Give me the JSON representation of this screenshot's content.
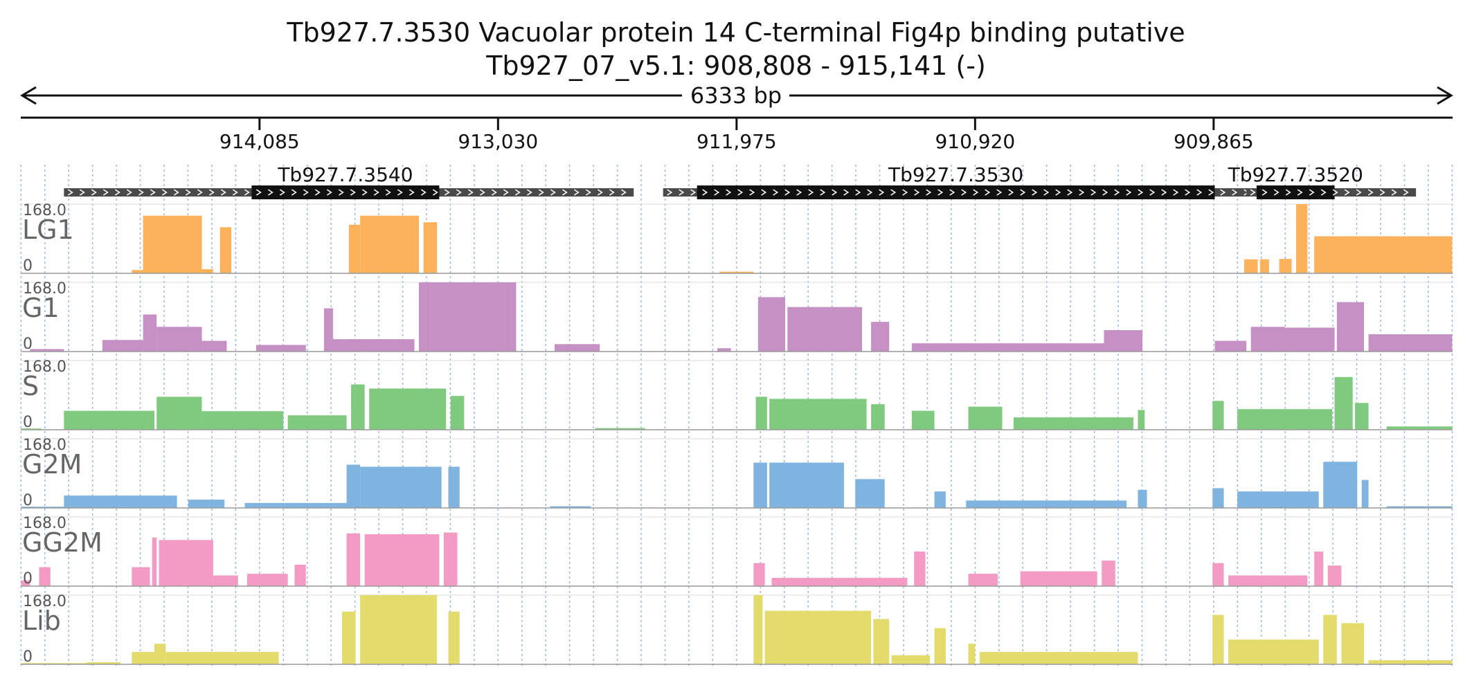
{
  "title": "Tb927.7.3530  Vacuolar protein 14 C-terminal Fig4p binding  putative",
  "subtitle": "Tb927_07_v5.1: 908,808 - 915,141 (-)",
  "chart_data": {
    "type": "area",
    "region": {
      "chrom": "Tb927_07_v5.1",
      "start": 908808,
      "end": 915141,
      "strand": "-"
    },
    "span_label": "6333 bp",
    "x_ticks": [
      "914,085",
      "913,030",
      "911,975",
      "910,920",
      "909,865"
    ],
    "x_tick_values": [
      914085,
      913030,
      911975,
      910920,
      909865
    ],
    "grid": true,
    "genes": [
      {
        "name": "Tb927.7.3540",
        "start": 912430,
        "end": 914950,
        "cds_start": 913290,
        "cds_end": 914120
      },
      {
        "name": "Tb927.7.3530",
        "start": 909600,
        "end": 912300,
        "cds_start": 909860,
        "cds_end": 912150
      },
      {
        "name": "Tb927.7.3520",
        "start": 908970,
        "end": 909720,
        "cds_start": 909330,
        "cds_end": 909675
      }
    ],
    "ylim": [
      0,
      168
    ],
    "y_max_label": "168.0",
    "y_min_label": "0",
    "tracks": [
      {
        "name": "LG1",
        "color": "#fbb25b",
        "exons": [
          [
            914650,
            914600,
            8
          ],
          [
            914600,
            914340,
            140
          ],
          [
            914340,
            914290,
            10
          ],
          [
            914260,
            914210,
            112
          ],
          [
            913690,
            913640,
            118
          ],
          [
            913640,
            913380,
            140
          ],
          [
            913360,
            913300,
            124
          ],
          [
            912050,
            911900,
            4
          ],
          [
            909730,
            909670,
            34
          ],
          [
            909660,
            909620,
            34
          ],
          [
            909575,
            909520,
            35
          ],
          [
            909500,
            909450,
            168
          ],
          [
            909420,
            908810,
            90
          ]
        ]
      },
      {
        "name": "G1",
        "color": "#c590c3",
        "exons": [
          [
            915100,
            914950,
            6
          ],
          [
            914780,
            914600,
            28
          ],
          [
            914600,
            914540,
            90
          ],
          [
            914540,
            914340,
            60
          ],
          [
            914340,
            914230,
            26
          ],
          [
            914100,
            913880,
            16
          ],
          [
            913800,
            913760,
            105
          ],
          [
            913760,
            913400,
            30
          ],
          [
            913380,
            913330,
            168
          ],
          [
            913330,
            913000,
            168
          ],
          [
            913000,
            912950,
            168
          ],
          [
            912780,
            912580,
            18
          ],
          [
            912060,
            912000,
            8
          ],
          [
            911880,
            911760,
            132
          ],
          [
            911750,
            911420,
            108
          ],
          [
            911380,
            911300,
            72
          ],
          [
            911200,
            910250,
            20
          ],
          [
            910350,
            910180,
            52
          ],
          [
            909860,
            909720,
            26
          ],
          [
            909700,
            909550,
            60
          ],
          [
            909560,
            909330,
            58
          ],
          [
            909320,
            909200,
            120
          ],
          [
            909180,
            908810,
            42
          ]
        ]
      },
      {
        "name": "S",
        "color": "#80ca7f",
        "exons": [
          [
            915140,
            915050,
            3
          ],
          [
            914950,
            914550,
            46
          ],
          [
            914540,
            914340,
            80
          ],
          [
            914340,
            913980,
            45
          ],
          [
            913960,
            913700,
            35
          ],
          [
            913680,
            913620,
            110
          ],
          [
            913600,
            913260,
            100
          ],
          [
            913240,
            913180,
            82
          ],
          [
            912600,
            912380,
            4
          ],
          [
            911890,
            911840,
            80
          ],
          [
            911830,
            911400,
            75
          ],
          [
            911380,
            911320,
            62
          ],
          [
            911200,
            911100,
            46
          ],
          [
            910950,
            910800,
            56
          ],
          [
            910750,
            910220,
            30
          ],
          [
            910200,
            910170,
            48
          ],
          [
            909870,
            909820,
            70
          ],
          [
            909760,
            909340,
            50
          ],
          [
            909330,
            909250,
            128
          ],
          [
            909240,
            909180,
            65
          ],
          [
            909100,
            908810,
            8
          ]
        ]
      },
      {
        "name": "G2M",
        "color": "#7fb3e0",
        "exons": [
          [
            915140,
            914950,
            3
          ],
          [
            914950,
            914450,
            30
          ],
          [
            914400,
            914240,
            20
          ],
          [
            914150,
            913700,
            12
          ],
          [
            913700,
            913640,
            105
          ],
          [
            913640,
            913280,
            100
          ],
          [
            913250,
            913200,
            100
          ],
          [
            912800,
            912620,
            4
          ],
          [
            911900,
            911840,
            110
          ],
          [
            911830,
            911500,
            110
          ],
          [
            911450,
            911320,
            70
          ],
          [
            911100,
            911050,
            40
          ],
          [
            910960,
            910250,
            18
          ],
          [
            910200,
            910160,
            44
          ],
          [
            909870,
            909820,
            48
          ],
          [
            909760,
            909400,
            40
          ],
          [
            909380,
            909230,
            112
          ],
          [
            909210,
            909180,
            68
          ],
          [
            909100,
            908810,
            4
          ]
        ]
      },
      {
        "name": "GG2M",
        "color": "#f39bc4",
        "exons": [
          [
            915140,
            915100,
            14
          ],
          [
            915060,
            915010,
            46
          ],
          [
            914650,
            914570,
            46
          ],
          [
            914560,
            914540,
            118
          ],
          [
            914530,
            914290,
            112
          ],
          [
            914290,
            914180,
            26
          ],
          [
            914140,
            913960,
            30
          ],
          [
            913930,
            913880,
            52
          ],
          [
            913700,
            913640,
            128
          ],
          [
            913620,
            913290,
            126
          ],
          [
            913270,
            913210,
            130
          ],
          [
            911900,
            911850,
            56
          ],
          [
            911820,
            911220,
            20
          ],
          [
            911190,
            911140,
            84
          ],
          [
            910950,
            910820,
            30
          ],
          [
            910720,
            910380,
            36
          ],
          [
            910360,
            910300,
            62
          ],
          [
            909870,
            909820,
            56
          ],
          [
            909800,
            909450,
            26
          ],
          [
            909420,
            909380,
            84
          ],
          [
            909360,
            909300,
            50
          ]
        ]
      },
      {
        "name": "Lib",
        "color": "#e3db6b",
        "exons": [
          [
            915140,
            914850,
            3
          ],
          [
            914850,
            914700,
            5
          ],
          [
            914650,
            914550,
            30
          ],
          [
            914550,
            914500,
            50
          ],
          [
            914500,
            914000,
            30
          ],
          [
            913720,
            913660,
            128
          ],
          [
            913640,
            913300,
            168
          ],
          [
            913250,
            913200,
            128
          ],
          [
            911900,
            911860,
            168
          ],
          [
            911850,
            911380,
            130
          ],
          [
            911370,
            911300,
            110
          ],
          [
            911290,
            911120,
            22
          ],
          [
            911100,
            911050,
            88
          ],
          [
            910950,
            910920,
            50
          ],
          [
            910900,
            910200,
            30
          ],
          [
            909870,
            909820,
            120
          ],
          [
            909800,
            909400,
            60
          ],
          [
            909380,
            909320,
            120
          ],
          [
            909300,
            909200,
            100
          ],
          [
            909180,
            908810,
            10
          ]
        ]
      }
    ]
  }
}
